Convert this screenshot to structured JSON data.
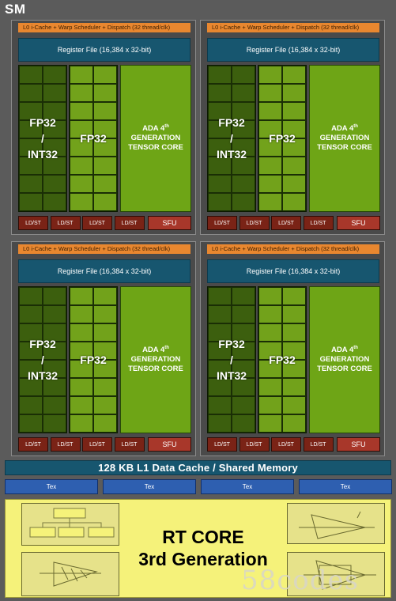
{
  "sm_label": "SM",
  "quadrant": {
    "scheduler": "L0 i-Cache + Warp Scheduler + Dispatch (32 thread/clk)",
    "register_file": "Register File (16,384 x 32-bit)",
    "int_label": [
      "FP32",
      "/",
      "INT32"
    ],
    "fp_label": "FP32",
    "tensor_label": [
      "ADA 4",
      "th",
      "GENERATION",
      "TENSOR CORE"
    ],
    "ldst_label": "LD/ST",
    "sfu_label": "SFU"
  },
  "l1_cache": "128 KB L1 Data Cache / Shared Memory",
  "tex_units": [
    "Tex",
    "Tex",
    "Tex",
    "Tex"
  ],
  "rt_core": {
    "line1": "RT CORE",
    "line2": "3rd Generation"
  },
  "watermark": "58codes",
  "colors": {
    "background": "#5b5b5b",
    "scheduler": "#e9872f",
    "register_file": "#17566f",
    "int32_cores": "#3c5f0e",
    "fp32_cores": "#72a21b",
    "tensor_core": "#6ea516",
    "ldst": "#7a2316",
    "sfu": "#a8372a",
    "tex": "#2e5fb0",
    "rt_core": "#f5f27a"
  }
}
